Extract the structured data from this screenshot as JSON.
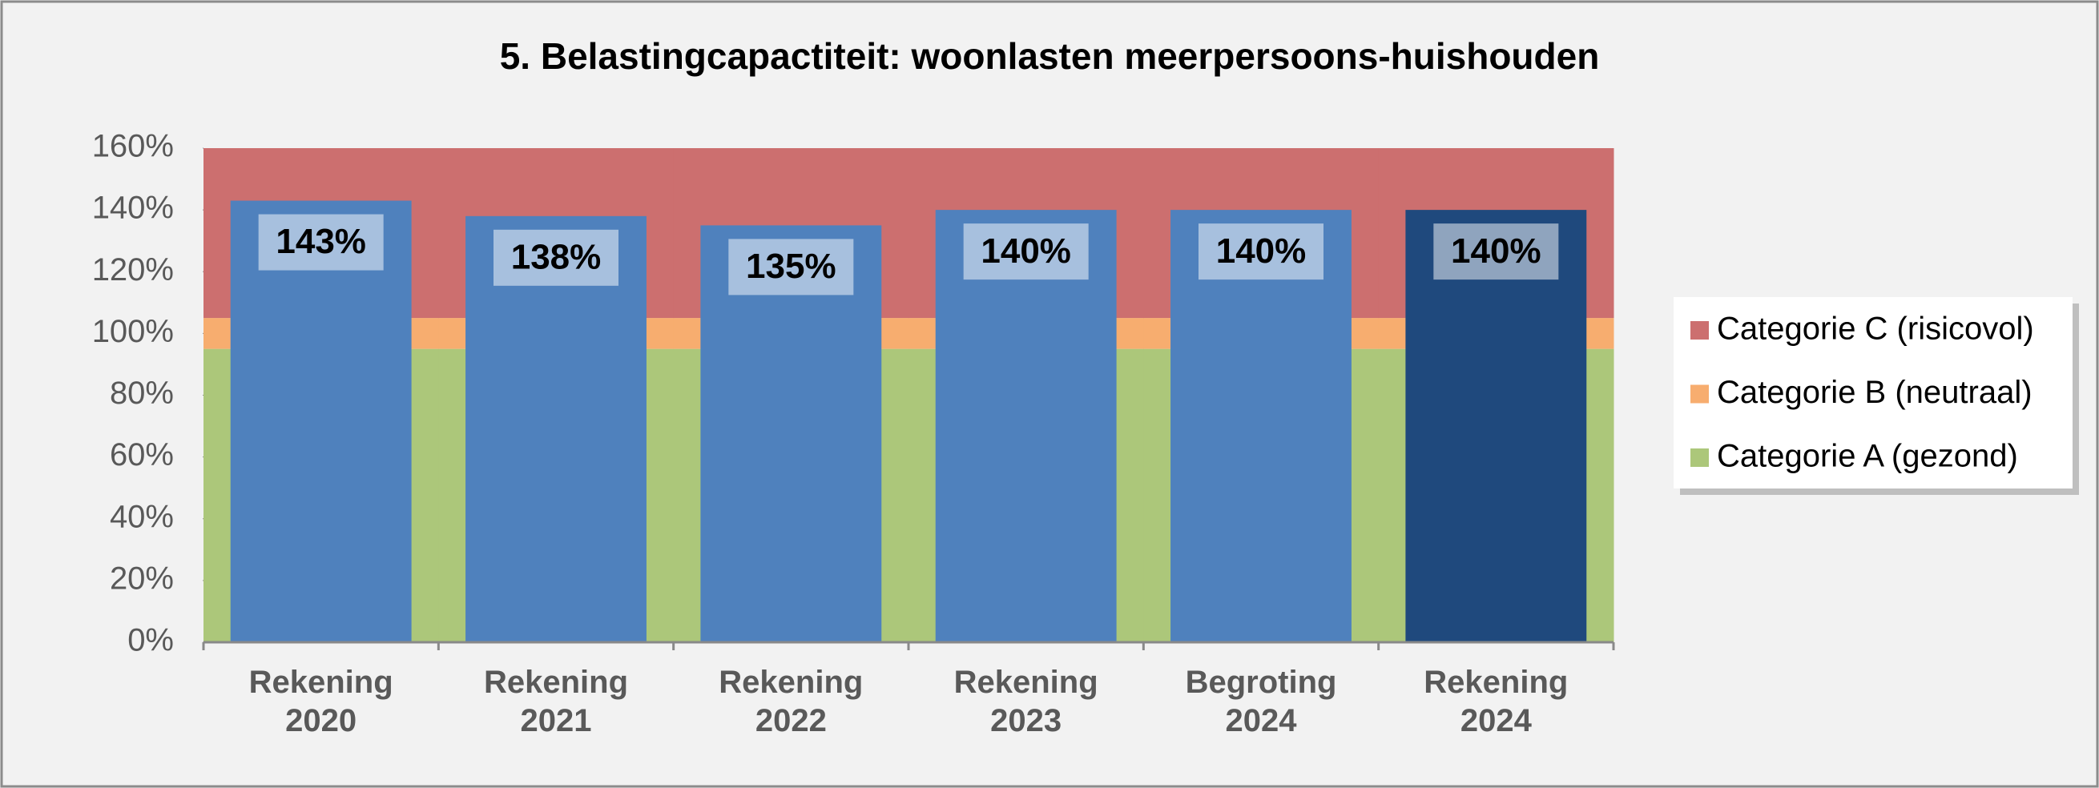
{
  "chart_data": {
    "type": "bar",
    "title": "5. Belastingcapactiteit: woonlasten meerpersoons-huishouden",
    "categories": [
      "Rekening 2020",
      "Rekening 2021",
      "Rekening 2022",
      "Rekening 2023",
      "Begroting 2024",
      "Rekening 2024"
    ],
    "values": [
      143,
      138,
      135,
      140,
      140,
      140
    ],
    "value_labels": [
      "143%",
      "138%",
      "135%",
      "140%",
      "140%",
      "140%"
    ],
    "colors": [
      "#4f81bd",
      "#4f81bd",
      "#4f81bd",
      "#4f81bd",
      "#4f81bd",
      "#1f497d"
    ],
    "background_series": [
      {
        "name": "Categorie A (gezond)",
        "color": "#acc77a",
        "values": [
          95,
          95,
          95,
          95,
          95,
          95
        ]
      },
      {
        "name": "Categorie B (neutraal)",
        "color": "#f7ad6f",
        "values": [
          10,
          10,
          10,
          10,
          10,
          10
        ]
      },
      {
        "name": "Categorie C (risicovol)",
        "color": "#cc6f6f",
        "values": [
          55,
          55,
          55,
          55,
          55,
          55
        ]
      }
    ],
    "ylim": [
      0,
      160
    ],
    "yticks": [
      {
        "value": 0,
        "label": "0%"
      },
      {
        "value": 20,
        "label": "20%"
      },
      {
        "value": 40,
        "label": "40%"
      },
      {
        "value": 60,
        "label": "60%"
      },
      {
        "value": 80,
        "label": "80%"
      },
      {
        "value": 100,
        "label": "100%"
      },
      {
        "value": 120,
        "label": "120%"
      },
      {
        "value": 140,
        "label": "140%"
      },
      {
        "value": 160,
        "label": "160%"
      }
    ],
    "legend": "right"
  }
}
